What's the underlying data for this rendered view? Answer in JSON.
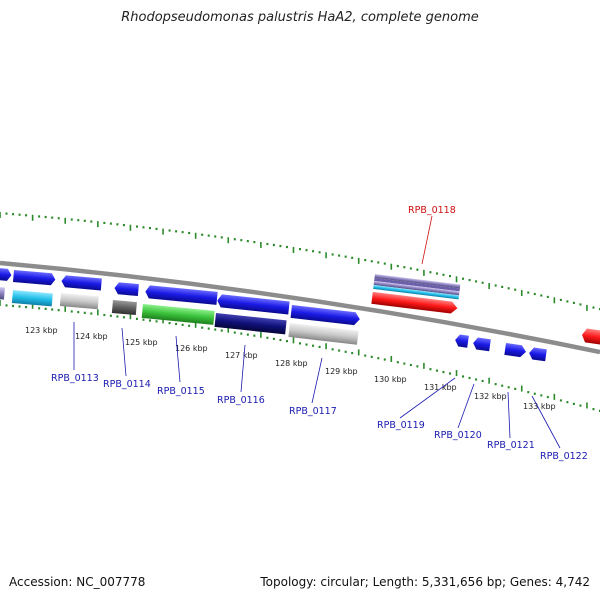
{
  "title": "Rhodopseudomonas palustris HaA2, complete genome",
  "footer": {
    "accession": "Accession: NC_007778",
    "summary": "Topology: circular; Length: 5,331,656 bp; Genes: 4,742"
  },
  "colors": {
    "backbone": "#8c8c8c",
    "tick": "#2a8a2a",
    "label_blue": "#1a1ab0",
    "label_red": "#d01010",
    "gene_blue": "#1a1ae6",
    "gene_cyan": "#22bfe8",
    "gene_gray": "#c8c8c8",
    "gene_darkgray": "#606060",
    "gene_green": "#3cc43c",
    "gene_navy": "#10107a",
    "gene_red": "#ff1a1a",
    "gene_purple": "#8c80c0"
  },
  "ticks": [
    {
      "label": "123 kbp"
    },
    {
      "label": "124 kbp"
    },
    {
      "label": "125 kbp"
    },
    {
      "label": "126 kbp"
    },
    {
      "label": "127 kbp"
    },
    {
      "label": "128 kbp"
    },
    {
      "label": "129 kbp"
    },
    {
      "label": "130 kbp"
    },
    {
      "label": "131 kbp"
    },
    {
      "label": "132 kbp"
    },
    {
      "label": "133 kbp"
    }
  ],
  "genes": [
    {
      "id": "RPB_0113",
      "color": "blue"
    },
    {
      "id": "RPB_0114",
      "color": "blue"
    },
    {
      "id": "RPB_0115",
      "color": "blue"
    },
    {
      "id": "RPB_0116",
      "color": "blue"
    },
    {
      "id": "RPB_0117",
      "color": "blue"
    },
    {
      "id": "RPB_0118",
      "color": "red"
    },
    {
      "id": "RPB_0119",
      "color": "blue"
    },
    {
      "id": "RPB_0120",
      "color": "blue"
    },
    {
      "id": "RPB_0121",
      "color": "blue"
    },
    {
      "id": "RPB_0122",
      "color": "blue"
    }
  ]
}
